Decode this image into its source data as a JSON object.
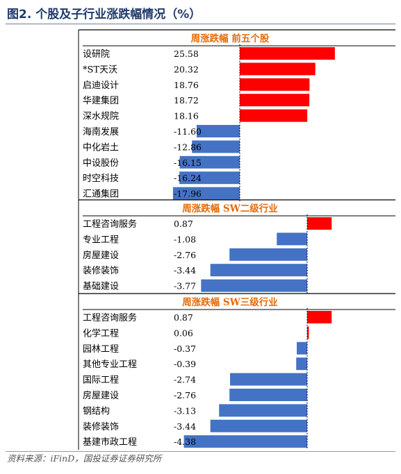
{
  "title": "图2. 个股及子行业涨跌幅情况（%）",
  "source": "资料来源：iFinD，国投证券证券研究所",
  "colors": {
    "positive": "#ff0000",
    "negative": "#4472c4",
    "header": "#e46c0a",
    "title": "#1f3a6b"
  },
  "chart_data": [
    {
      "type": "bar",
      "title": "周涨跌幅 前五个股",
      "categories": [
        "设研院",
        "*ST天沃",
        "启迪设计",
        "华建集团",
        "深水规院",
        "海南发展",
        "中化岩土",
        "中设股份",
        "时空科技",
        "汇通集团"
      ],
      "values": [
        25.58,
        20.32,
        18.76,
        18.72,
        18.16,
        -11.6,
        -12.86,
        -16.15,
        -16.24,
        -17.96
      ],
      "value_labels": [
        "25.58",
        "20.32",
        "18.76",
        "18.72",
        "18.16",
        "-11.60",
        "-12.86",
        "-16.15",
        "-16.24",
        "-17.96"
      ],
      "orientation": "horizontal"
    },
    {
      "type": "bar",
      "title": "周涨跌幅 SW二级行业",
      "categories": [
        "工程咨询服务",
        "专业工程",
        "房屋建设",
        "装修装饰",
        "基础建设"
      ],
      "values": [
        0.87,
        -1.08,
        -2.76,
        -3.44,
        -3.77
      ],
      "value_labels": [
        "0.87",
        "-1.08",
        "-2.76",
        "-3.44",
        "-3.77"
      ],
      "orientation": "horizontal"
    },
    {
      "type": "bar",
      "title": "周涨跌幅 SW三级行业",
      "categories": [
        "工程咨询服务",
        "化学工程",
        "园林工程",
        "其他专业工程",
        "国际工程",
        "房屋建设",
        "钢结构",
        "装修装饰",
        "基建市政工程"
      ],
      "values": [
        0.87,
        0.06,
        -0.37,
        -0.39,
        -2.74,
        -2.76,
        -3.13,
        -3.44,
        -4.38
      ],
      "value_labels": [
        "0.87",
        "0.06",
        "-0.37",
        "-0.39",
        "-2.74",
        "-2.76",
        "-3.13",
        "-3.44",
        "-4.38"
      ],
      "orientation": "horizontal"
    }
  ]
}
